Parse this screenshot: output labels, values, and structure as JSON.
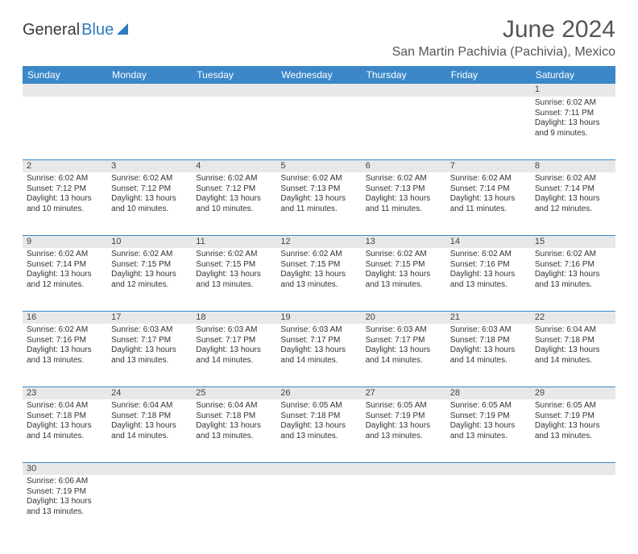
{
  "logo": {
    "part1": "General",
    "part2": "Blue"
  },
  "title": "June 2024",
  "location": "San Martin Pachivia (Pachivia), Mexico",
  "daysOfWeek": [
    "Sunday",
    "Monday",
    "Tuesday",
    "Wednesday",
    "Thursday",
    "Friday",
    "Saturday"
  ],
  "colors": {
    "headerBg": "#3b87c8",
    "headerText": "#ffffff",
    "dayNumBg": "#e8e8e8",
    "rowBorder": "#3b87c8",
    "titleText": "#555555",
    "bodyText": "#333333",
    "logoBlue": "#2f7bbf",
    "logoDark": "#3a3a3a"
  },
  "weeks": [
    [
      {
        "n": "",
        "lines": [
          "",
          "",
          "",
          ""
        ]
      },
      {
        "n": "",
        "lines": [
          "",
          "",
          "",
          ""
        ]
      },
      {
        "n": "",
        "lines": [
          "",
          "",
          "",
          ""
        ]
      },
      {
        "n": "",
        "lines": [
          "",
          "",
          "",
          ""
        ]
      },
      {
        "n": "",
        "lines": [
          "",
          "",
          "",
          ""
        ]
      },
      {
        "n": "",
        "lines": [
          "",
          "",
          "",
          ""
        ]
      },
      {
        "n": "1",
        "lines": [
          "Sunrise: 6:02 AM",
          "Sunset: 7:11 PM",
          "Daylight: 13 hours",
          "and 9 minutes."
        ]
      }
    ],
    [
      {
        "n": "2",
        "lines": [
          "Sunrise: 6:02 AM",
          "Sunset: 7:12 PM",
          "Daylight: 13 hours",
          "and 10 minutes."
        ]
      },
      {
        "n": "3",
        "lines": [
          "Sunrise: 6:02 AM",
          "Sunset: 7:12 PM",
          "Daylight: 13 hours",
          "and 10 minutes."
        ]
      },
      {
        "n": "4",
        "lines": [
          "Sunrise: 6:02 AM",
          "Sunset: 7:12 PM",
          "Daylight: 13 hours",
          "and 10 minutes."
        ]
      },
      {
        "n": "5",
        "lines": [
          "Sunrise: 6:02 AM",
          "Sunset: 7:13 PM",
          "Daylight: 13 hours",
          "and 11 minutes."
        ]
      },
      {
        "n": "6",
        "lines": [
          "Sunrise: 6:02 AM",
          "Sunset: 7:13 PM",
          "Daylight: 13 hours",
          "and 11 minutes."
        ]
      },
      {
        "n": "7",
        "lines": [
          "Sunrise: 6:02 AM",
          "Sunset: 7:14 PM",
          "Daylight: 13 hours",
          "and 11 minutes."
        ]
      },
      {
        "n": "8",
        "lines": [
          "Sunrise: 6:02 AM",
          "Sunset: 7:14 PM",
          "Daylight: 13 hours",
          "and 12 minutes."
        ]
      }
    ],
    [
      {
        "n": "9",
        "lines": [
          "Sunrise: 6:02 AM",
          "Sunset: 7:14 PM",
          "Daylight: 13 hours",
          "and 12 minutes."
        ]
      },
      {
        "n": "10",
        "lines": [
          "Sunrise: 6:02 AM",
          "Sunset: 7:15 PM",
          "Daylight: 13 hours",
          "and 12 minutes."
        ]
      },
      {
        "n": "11",
        "lines": [
          "Sunrise: 6:02 AM",
          "Sunset: 7:15 PM",
          "Daylight: 13 hours",
          "and 13 minutes."
        ]
      },
      {
        "n": "12",
        "lines": [
          "Sunrise: 6:02 AM",
          "Sunset: 7:15 PM",
          "Daylight: 13 hours",
          "and 13 minutes."
        ]
      },
      {
        "n": "13",
        "lines": [
          "Sunrise: 6:02 AM",
          "Sunset: 7:15 PM",
          "Daylight: 13 hours",
          "and 13 minutes."
        ]
      },
      {
        "n": "14",
        "lines": [
          "Sunrise: 6:02 AM",
          "Sunset: 7:16 PM",
          "Daylight: 13 hours",
          "and 13 minutes."
        ]
      },
      {
        "n": "15",
        "lines": [
          "Sunrise: 6:02 AM",
          "Sunset: 7:16 PM",
          "Daylight: 13 hours",
          "and 13 minutes."
        ]
      }
    ],
    [
      {
        "n": "16",
        "lines": [
          "Sunrise: 6:02 AM",
          "Sunset: 7:16 PM",
          "Daylight: 13 hours",
          "and 13 minutes."
        ]
      },
      {
        "n": "17",
        "lines": [
          "Sunrise: 6:03 AM",
          "Sunset: 7:17 PM",
          "Daylight: 13 hours",
          "and 13 minutes."
        ]
      },
      {
        "n": "18",
        "lines": [
          "Sunrise: 6:03 AM",
          "Sunset: 7:17 PM",
          "Daylight: 13 hours",
          "and 14 minutes."
        ]
      },
      {
        "n": "19",
        "lines": [
          "Sunrise: 6:03 AM",
          "Sunset: 7:17 PM",
          "Daylight: 13 hours",
          "and 14 minutes."
        ]
      },
      {
        "n": "20",
        "lines": [
          "Sunrise: 6:03 AM",
          "Sunset: 7:17 PM",
          "Daylight: 13 hours",
          "and 14 minutes."
        ]
      },
      {
        "n": "21",
        "lines": [
          "Sunrise: 6:03 AM",
          "Sunset: 7:18 PM",
          "Daylight: 13 hours",
          "and 14 minutes."
        ]
      },
      {
        "n": "22",
        "lines": [
          "Sunrise: 6:04 AM",
          "Sunset: 7:18 PM",
          "Daylight: 13 hours",
          "and 14 minutes."
        ]
      }
    ],
    [
      {
        "n": "23",
        "lines": [
          "Sunrise: 6:04 AM",
          "Sunset: 7:18 PM",
          "Daylight: 13 hours",
          "and 14 minutes."
        ]
      },
      {
        "n": "24",
        "lines": [
          "Sunrise: 6:04 AM",
          "Sunset: 7:18 PM",
          "Daylight: 13 hours",
          "and 14 minutes."
        ]
      },
      {
        "n": "25",
        "lines": [
          "Sunrise: 6:04 AM",
          "Sunset: 7:18 PM",
          "Daylight: 13 hours",
          "and 13 minutes."
        ]
      },
      {
        "n": "26",
        "lines": [
          "Sunrise: 6:05 AM",
          "Sunset: 7:18 PM",
          "Daylight: 13 hours",
          "and 13 minutes."
        ]
      },
      {
        "n": "27",
        "lines": [
          "Sunrise: 6:05 AM",
          "Sunset: 7:19 PM",
          "Daylight: 13 hours",
          "and 13 minutes."
        ]
      },
      {
        "n": "28",
        "lines": [
          "Sunrise: 6:05 AM",
          "Sunset: 7:19 PM",
          "Daylight: 13 hours",
          "and 13 minutes."
        ]
      },
      {
        "n": "29",
        "lines": [
          "Sunrise: 6:05 AM",
          "Sunset: 7:19 PM",
          "Daylight: 13 hours",
          "and 13 minutes."
        ]
      }
    ],
    [
      {
        "n": "30",
        "lines": [
          "Sunrise: 6:06 AM",
          "Sunset: 7:19 PM",
          "Daylight: 13 hours",
          "and 13 minutes."
        ]
      },
      {
        "n": "",
        "lines": [
          "",
          "",
          "",
          ""
        ]
      },
      {
        "n": "",
        "lines": [
          "",
          "",
          "",
          ""
        ]
      },
      {
        "n": "",
        "lines": [
          "",
          "",
          "",
          ""
        ]
      },
      {
        "n": "",
        "lines": [
          "",
          "",
          "",
          ""
        ]
      },
      {
        "n": "",
        "lines": [
          "",
          "",
          "",
          ""
        ]
      },
      {
        "n": "",
        "lines": [
          "",
          "",
          "",
          ""
        ]
      }
    ]
  ]
}
